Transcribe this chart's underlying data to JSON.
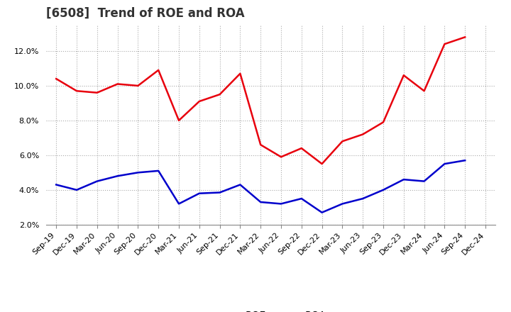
{
  "title": "[6508]  Trend of ROE and ROA",
  "labels": [
    "Sep-19",
    "Dec-19",
    "Mar-20",
    "Jun-20",
    "Sep-20",
    "Dec-20",
    "Mar-21",
    "Jun-21",
    "Sep-21",
    "Dec-21",
    "Mar-22",
    "Jun-22",
    "Sep-22",
    "Dec-22",
    "Mar-23",
    "Jun-23",
    "Sep-23",
    "Dec-23",
    "Mar-24",
    "Jun-24",
    "Sep-24",
    "Dec-24"
  ],
  "ROE": [
    10.4,
    9.7,
    9.6,
    10.1,
    10.0,
    10.9,
    8.0,
    9.1,
    9.5,
    10.7,
    6.6,
    5.9,
    6.4,
    5.5,
    6.8,
    7.2,
    7.9,
    10.6,
    9.7,
    12.4,
    12.8,
    null
  ],
  "ROA": [
    4.3,
    4.0,
    4.5,
    4.8,
    5.0,
    5.1,
    3.2,
    3.8,
    3.85,
    4.3,
    3.3,
    3.2,
    3.5,
    2.7,
    3.2,
    3.5,
    4.0,
    4.6,
    4.5,
    5.5,
    5.7,
    null
  ],
  "roe_color": "#e8000d",
  "roa_color": "#0000cc",
  "ylim": [
    2.0,
    13.5
  ],
  "yticks": [
    2.0,
    4.0,
    6.0,
    8.0,
    10.0,
    12.0
  ],
  "background_color": "#ffffff",
  "grid_color": "#aaaaaa",
  "title_fontsize": 12,
  "title_color": "#333333",
  "legend_entries": [
    "ROE",
    "ROA"
  ],
  "tick_fontsize": 8,
  "legend_fontsize": 10
}
